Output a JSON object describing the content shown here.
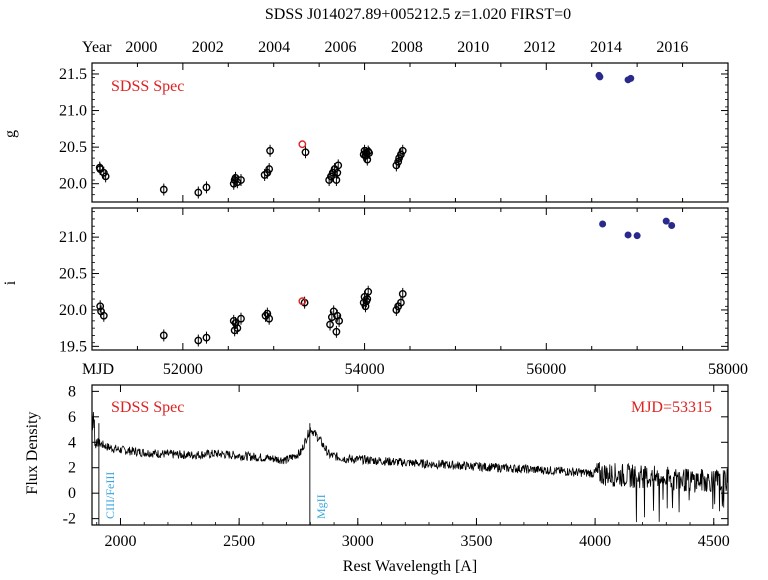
{
  "title": "SDSS J014027.89+005212.5  z=1.020  FIRST=0",
  "year_axis": {
    "label": "Year",
    "ticks": [
      "2000",
      "2002",
      "2004",
      "2006",
      "2008",
      "2010",
      "2012",
      "2014",
      "2016"
    ]
  },
  "mjd_axis": {
    "label": "MJD",
    "ticks": [
      "52000",
      "54000",
      "56000",
      "58000"
    ]
  },
  "colors": {
    "sdss": "#000000",
    "spec_epoch": "#dd2222",
    "recent": "#2a2a8c",
    "spec_label": "#dd2222",
    "line_label": "#3aa6dd"
  },
  "chart_data": [
    {
      "type": "scatter",
      "panel": "g",
      "ylabel": "g",
      "annotation": "SDSS Spec",
      "xlim": [
        51000,
        58000
      ],
      "ylim": [
        21.65,
        19.75
      ],
      "yticks": [
        "20.0",
        "20.5",
        "21.0",
        "21.5"
      ],
      "ytick_values": [
        20.0,
        20.5,
        21.0,
        21.5
      ],
      "series": [
        {
          "role": "sdss",
          "points": [
            [
              51085,
              20.22
            ],
            [
              51090,
              20.2
            ],
            [
              51130,
              20.15
            ],
            [
              51150,
              20.1
            ],
            [
              51790,
              19.92
            ],
            [
              52170,
              19.88
            ],
            [
              52260,
              19.95
            ],
            [
              52560,
              20.0
            ],
            [
              52570,
              20.05
            ],
            [
              52580,
              20.08
            ],
            [
              52600,
              20.02
            ],
            [
              52640,
              20.05
            ],
            [
              52900,
              20.12
            ],
            [
              52930,
              20.15
            ],
            [
              52950,
              20.2
            ],
            [
              52960,
              20.45
            ],
            [
              53350,
              20.43
            ],
            [
              53610,
              20.05
            ],
            [
              53630,
              20.1
            ],
            [
              53650,
              20.15
            ],
            [
              53670,
              20.2
            ],
            [
              53690,
              20.05
            ],
            [
              53700,
              20.15
            ],
            [
              53710,
              20.25
            ],
            [
              53990,
              20.4
            ],
            [
              54000,
              20.45
            ],
            [
              54010,
              20.38
            ],
            [
              54020,
              20.42
            ],
            [
              54030,
              20.33
            ],
            [
              54040,
              20.44
            ],
            [
              54050,
              20.42
            ],
            [
              54350,
              20.25
            ],
            [
              54370,
              20.3
            ],
            [
              54380,
              20.35
            ],
            [
              54400,
              20.4
            ],
            [
              54420,
              20.45
            ]
          ]
        },
        {
          "role": "spec_epoch",
          "points": [
            [
              53315,
              20.54
            ]
          ]
        },
        {
          "role": "recent",
          "points": [
            [
              56580,
              21.48
            ],
            [
              56590,
              21.46
            ],
            [
              56900,
              21.42
            ],
            [
              56930,
              21.44
            ]
          ]
        }
      ]
    },
    {
      "type": "scatter",
      "panel": "i",
      "ylabel": "i",
      "xlim": [
        51000,
        58000
      ],
      "ylim": [
        21.4,
        19.45
      ],
      "yticks": [
        "19.5",
        "20.0",
        "20.5",
        "21.0"
      ],
      "ytick_values": [
        19.5,
        20.0,
        20.5,
        21.0
      ],
      "series": [
        {
          "role": "sdss",
          "points": [
            [
              51090,
              20.05
            ],
            [
              51100,
              19.98
            ],
            [
              51130,
              19.92
            ],
            [
              51790,
              19.65
            ],
            [
              52170,
              19.58
            ],
            [
              52260,
              19.62
            ],
            [
              52560,
              19.85
            ],
            [
              52570,
              19.72
            ],
            [
              52580,
              19.82
            ],
            [
              52600,
              19.75
            ],
            [
              52640,
              19.88
            ],
            [
              52910,
              19.92
            ],
            [
              52930,
              19.95
            ],
            [
              52950,
              19.88
            ],
            [
              53340,
              20.1
            ],
            [
              53620,
              19.8
            ],
            [
              53640,
              19.9
            ],
            [
              53660,
              19.98
            ],
            [
              53690,
              19.7
            ],
            [
              53700,
              19.92
            ],
            [
              53720,
              19.85
            ],
            [
              53990,
              20.1
            ],
            [
              54000,
              20.18
            ],
            [
              54010,
              20.05
            ],
            [
              54020,
              20.12
            ],
            [
              54030,
              20.15
            ],
            [
              54040,
              20.25
            ],
            [
              54350,
              20.0
            ],
            [
              54370,
              20.05
            ],
            [
              54400,
              20.1
            ],
            [
              54420,
              20.22
            ]
          ]
        },
        {
          "role": "spec_epoch",
          "points": [
            [
              53315,
              20.12
            ]
          ]
        },
        {
          "role": "recent",
          "points": [
            [
              56620,
              21.18
            ],
            [
              56900,
              21.03
            ],
            [
              57000,
              21.02
            ],
            [
              57320,
              21.22
            ],
            [
              57380,
              21.16
            ]
          ]
        }
      ]
    },
    {
      "type": "line",
      "panel": "spectrum",
      "xlabel": "Rest Wavelength [A]",
      "ylabel": "Flux Density",
      "annotation_left": "SDSS Spec",
      "annotation_right": "MJD=53315",
      "xlim": [
        1880,
        4560
      ],
      "ylim": [
        -2.5,
        8.5
      ],
      "xticks": [
        2000,
        2500,
        3000,
        3500,
        4000,
        4500
      ],
      "yticks": [
        -2,
        0,
        2,
        4,
        6,
        8
      ],
      "anchors": [
        [
          1880,
          6.2
        ],
        [
          1900,
          4.0
        ],
        [
          1950,
          3.6
        ],
        [
          2000,
          3.4
        ],
        [
          2100,
          3.2
        ],
        [
          2200,
          3.05
        ],
        [
          2300,
          3.0
        ],
        [
          2400,
          3.1
        ],
        [
          2500,
          2.95
        ],
        [
          2600,
          2.8
        ],
        [
          2700,
          2.6
        ],
        [
          2760,
          3.2
        ],
        [
          2800,
          5.1
        ],
        [
          2840,
          4.2
        ],
        [
          2880,
          3.0
        ],
        [
          2950,
          2.7
        ],
        [
          3050,
          2.6
        ],
        [
          3200,
          2.4
        ],
        [
          3400,
          2.2
        ],
        [
          3600,
          2.0
        ],
        [
          3800,
          1.8
        ],
        [
          4000,
          1.55
        ],
        [
          4200,
          1.3
        ],
        [
          4400,
          1.0
        ],
        [
          4560,
          1.0
        ]
      ],
      "lines": [
        {
          "label": "CIII/FeIII",
          "x": 1909
        },
        {
          "label": "MgII",
          "x": 2798
        }
      ]
    }
  ]
}
